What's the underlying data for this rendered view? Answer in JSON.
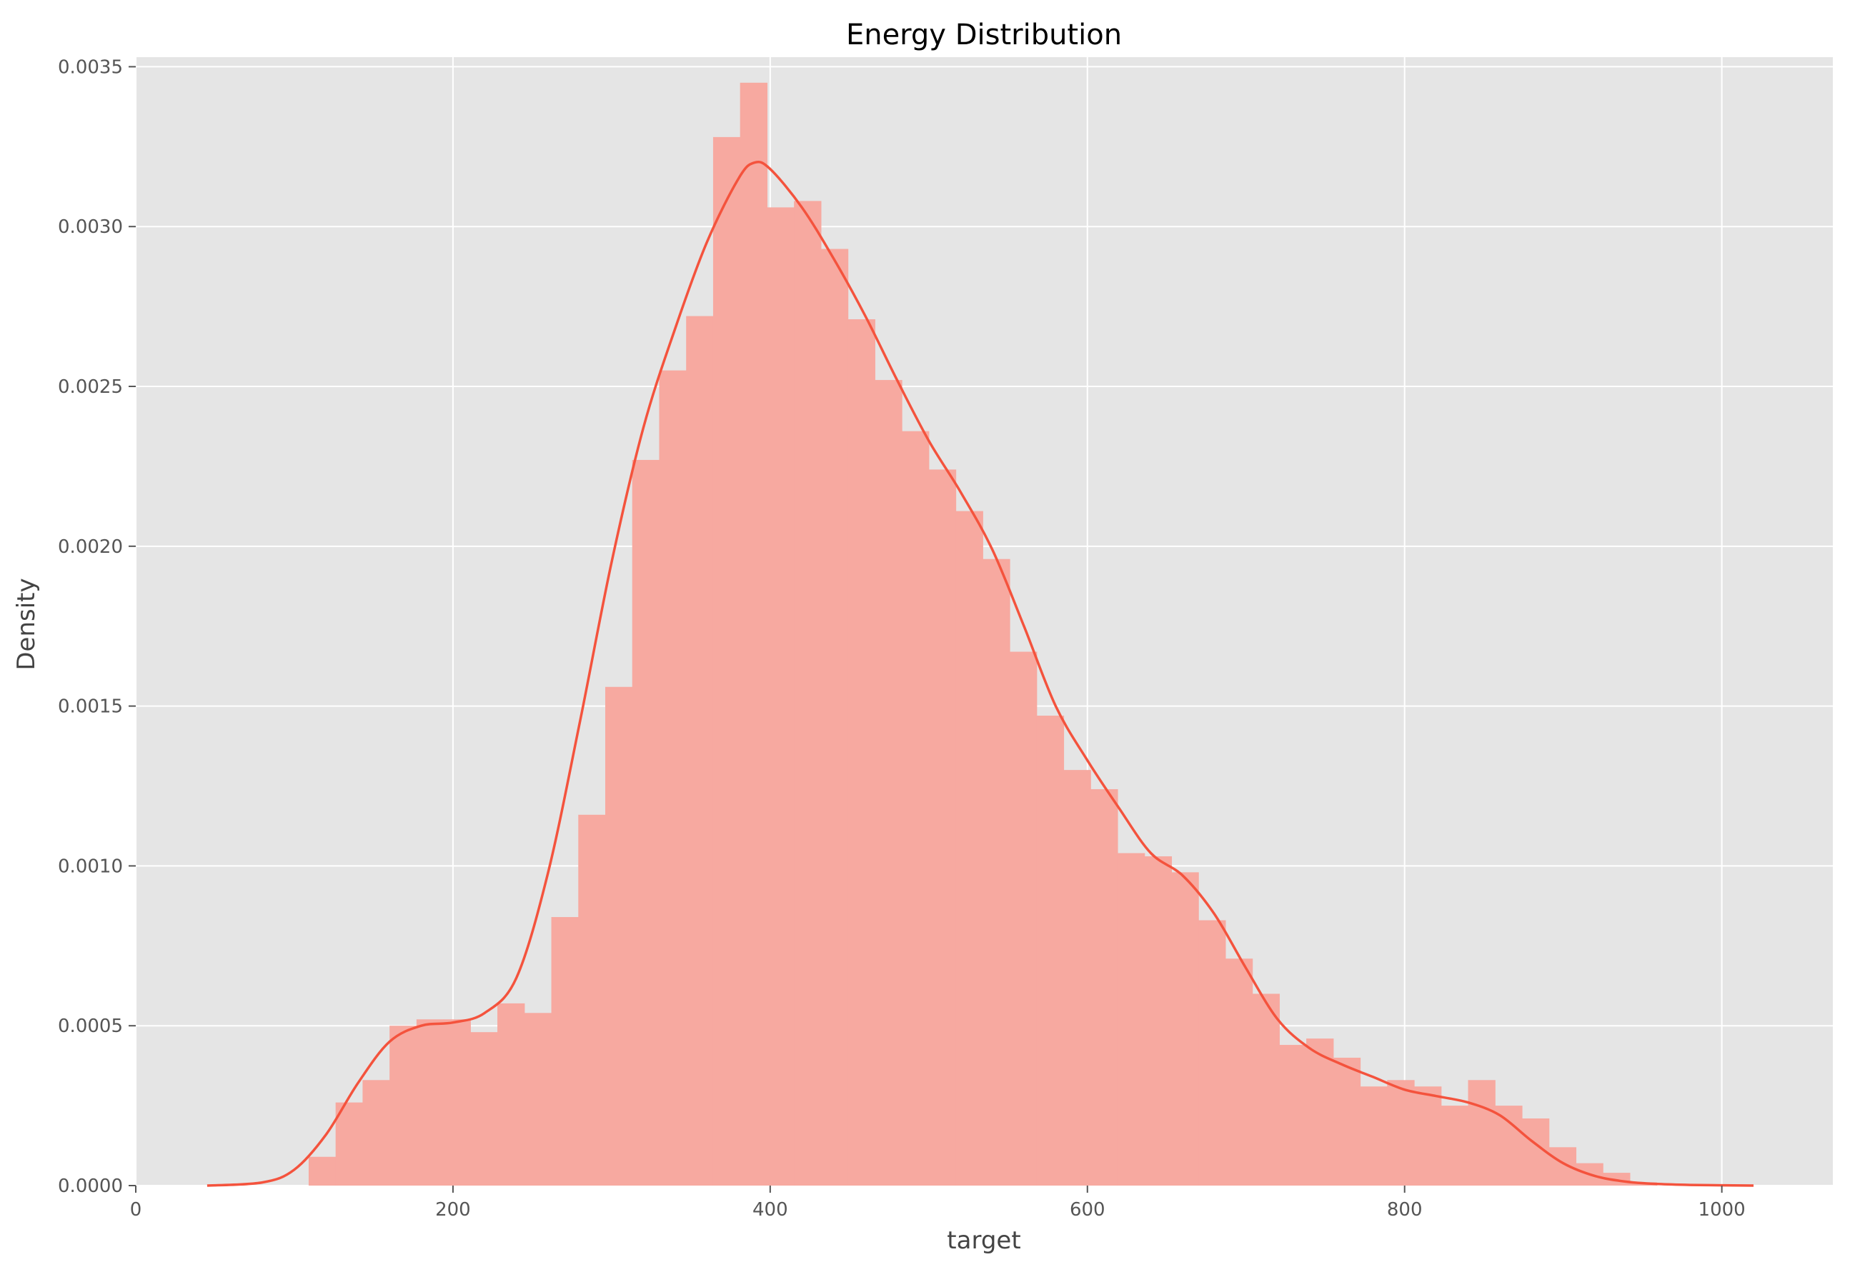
{
  "chart_data": {
    "type": "bar",
    "title": "Energy Distribution",
    "xlabel": "target",
    "ylabel": "Density",
    "xlim": [
      0,
      1070
    ],
    "ylim": [
      0,
      0.00353
    ],
    "x_ticks": [
      {
        "value": 0,
        "label": "0"
      },
      {
        "value": 200,
        "label": "200"
      },
      {
        "value": 400,
        "label": "400"
      },
      {
        "value": 600,
        "label": "600"
      },
      {
        "value": 800,
        "label": "800"
      },
      {
        "value": 1000,
        "label": "1000"
      }
    ],
    "y_ticks": [
      {
        "value": 0,
        "label": "0.0000"
      },
      {
        "value": 0.0005,
        "label": "0.0005"
      },
      {
        "value": 0.001,
        "label": "0.0010"
      },
      {
        "value": 0.0015,
        "label": "0.0015"
      },
      {
        "value": 0.002,
        "label": "0.0020"
      },
      {
        "value": 0.0025,
        "label": "0.0025"
      },
      {
        "value": 0.003,
        "label": "0.0030"
      },
      {
        "value": 0.0035,
        "label": "0.0035"
      }
    ],
    "grid": true,
    "histogram": {
      "bin_start": 109,
      "bin_width": 17,
      "densities": [
        9e-05,
        0.00026,
        0.00033,
        0.0005,
        0.00052,
        0.00052,
        0.00048,
        0.00057,
        0.00054,
        0.00084,
        0.00116,
        0.00156,
        0.00227,
        0.00255,
        0.00272,
        0.00328,
        0.00345,
        0.00306,
        0.00308,
        0.00293,
        0.00271,
        0.00252,
        0.00236,
        0.00224,
        0.00211,
        0.00196,
        0.00167,
        0.00147,
        0.0013,
        0.00124,
        0.00104,
        0.00103,
        0.00098,
        0.00083,
        0.00071,
        0.0006,
        0.00044,
        0.00046,
        0.0004,
        0.00031,
        0.00033,
        0.00031,
        0.00025,
        0.00033,
        0.00025,
        0.00021,
        0.00012,
        7e-05,
        4e-05,
        1e-05
      ],
      "color": "#f7a9a0"
    },
    "kde": {
      "x": [
        45,
        80,
        100,
        120,
        140,
        160,
        180,
        200,
        220,
        240,
        260,
        280,
        300,
        320,
        340,
        360,
        380,
        390,
        400,
        420,
        440,
        460,
        480,
        500,
        520,
        540,
        560,
        580,
        600,
        620,
        640,
        660,
        680,
        700,
        720,
        740,
        760,
        780,
        800,
        820,
        840,
        860,
        880,
        900,
        920,
        940,
        960,
        980,
        1000,
        1020
      ],
      "y": [
        0.0,
        1e-05,
        5e-05,
        0.00016,
        0.00032,
        0.00045,
        0.0005,
        0.00051,
        0.00054,
        0.00065,
        0.00098,
        0.00145,
        0.00195,
        0.00237,
        0.00268,
        0.00295,
        0.00315,
        0.0032,
        0.00318,
        0.00306,
        0.0029,
        0.00272,
        0.00252,
        0.00233,
        0.00217,
        0.00199,
        0.00175,
        0.0015,
        0.00133,
        0.00118,
        0.00104,
        0.00097,
        0.00085,
        0.00068,
        0.00052,
        0.00043,
        0.00038,
        0.00034,
        0.0003,
        0.00028,
        0.00026,
        0.00022,
        0.00014,
        7e-05,
        3e-05,
        1.2e-05,
        5e-06,
        2e-06,
        1e-06,
        0.0
      ],
      "color": "#f4533d"
    },
    "colors": {
      "plot_background": "#e5e5e5",
      "grid": "#ffffff",
      "axis": "#555555"
    }
  }
}
